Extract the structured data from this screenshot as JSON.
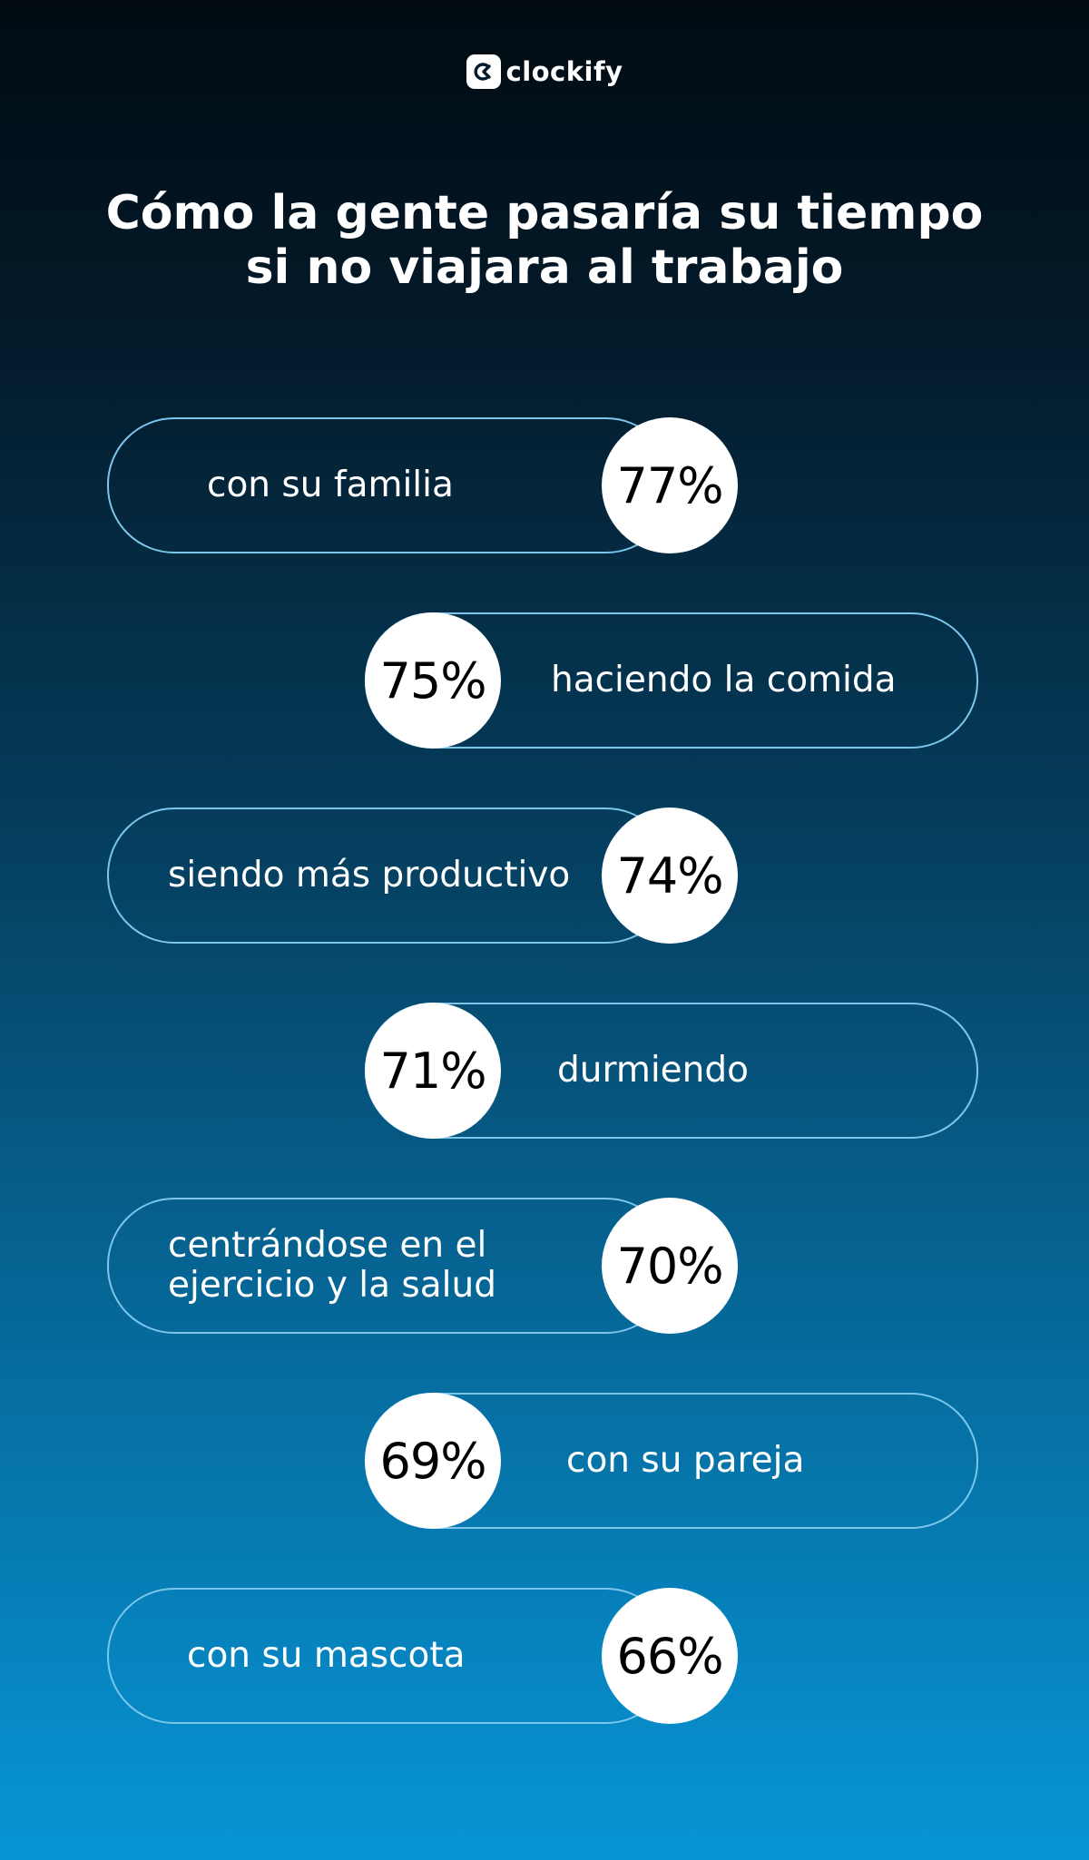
{
  "brand": {
    "name": "clockify"
  },
  "title": "Cómo la gente pasaría su tiempo si no viajara al trabajo",
  "items": [
    {
      "percent": "77%",
      "label": "con su familia",
      "value": 77
    },
    {
      "percent": "75%",
      "label": "haciendo la comida",
      "value": 75
    },
    {
      "percent": "74%",
      "label": "siendo más productivo",
      "value": 74
    },
    {
      "percent": "71%",
      "label": "durmiendo",
      "value": 71
    },
    {
      "percent": "70%",
      "label": "centrándose en el ejercicio y la salud",
      "value": 70
    },
    {
      "percent": "69%",
      "label": "con su pareja",
      "value": 69
    },
    {
      "percent": "66%",
      "label": "con su mascota",
      "value": 66
    }
  ],
  "colors": {
    "pill_border": "#7cc6ec",
    "circle_bg": "#ffffff",
    "text": "#ffffff",
    "percent_text": "#000000"
  }
}
